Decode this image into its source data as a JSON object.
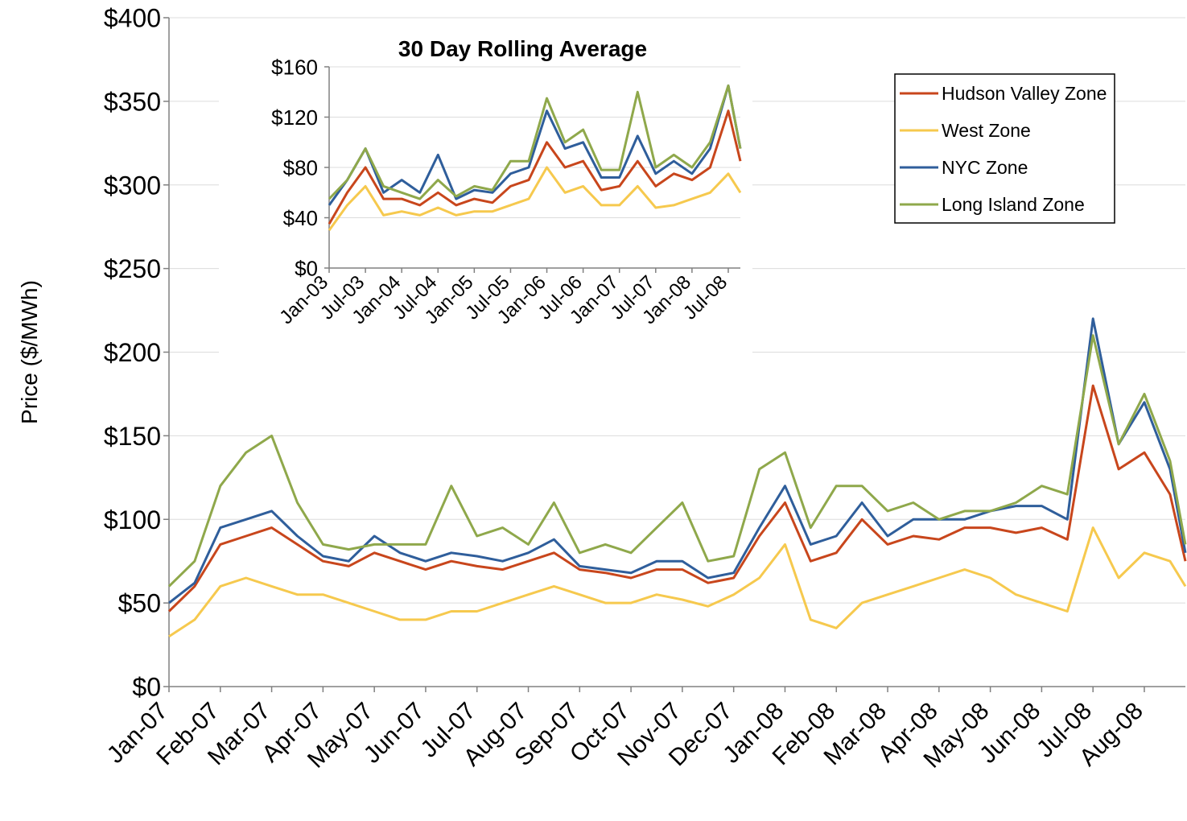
{
  "chart_data": [
    {
      "type": "line",
      "y_label": "Price ($/MWh)",
      "x": [
        0,
        0.5,
        1,
        1.5,
        2,
        2.5,
        3,
        3.5,
        4,
        4.5,
        5,
        5.5,
        6,
        6.5,
        7,
        7.5,
        8,
        8.5,
        9,
        9.5,
        10,
        10.5,
        11,
        11.5,
        12,
        12.5,
        13,
        13.5,
        14,
        14.5,
        15,
        15.5,
        16,
        16.5,
        17,
        17.5,
        18,
        18.5,
        19,
        19.5,
        19.8
      ],
      "series": [
        {
          "name": "Hudson Valley Zone",
          "color": "#c8461c",
          "values": [
            45,
            60,
            85,
            90,
            95,
            85,
            75,
            72,
            80,
            75,
            70,
            75,
            72,
            70,
            75,
            80,
            70,
            68,
            65,
            70,
            70,
            62,
            65,
            90,
            110,
            75,
            80,
            100,
            85,
            90,
            88,
            95,
            95,
            92,
            95,
            88,
            180,
            130,
            140,
            115,
            75
          ]
        },
        {
          "name": "West Zone",
          "color": "#f6c94e",
          "values": [
            30,
            40,
            60,
            65,
            60,
            55,
            55,
            50,
            45,
            40,
            40,
            45,
            45,
            50,
            55,
            60,
            55,
            50,
            50,
            55,
            52,
            48,
            55,
            65,
            85,
            40,
            35,
            50,
            55,
            60,
            65,
            70,
            65,
            55,
            50,
            45,
            95,
            65,
            80,
            75,
            60
          ]
        },
        {
          "name": "NYC Zone",
          "color": "#2f5e9b",
          "values": [
            50,
            62,
            95,
            100,
            105,
            90,
            78,
            75,
            90,
            80,
            75,
            80,
            78,
            75,
            80,
            88,
            72,
            70,
            68,
            75,
            75,
            65,
            68,
            95,
            120,
            85,
            90,
            110,
            90,
            100,
            100,
            100,
            105,
            108,
            108,
            100,
            220,
            145,
            170,
            130,
            80
          ]
        },
        {
          "name": "Long Island Zone",
          "color": "#8fa84b",
          "values": [
            60,
            75,
            120,
            140,
            150,
            110,
            85,
            82,
            85,
            85,
            85,
            120,
            90,
            95,
            85,
            110,
            80,
            85,
            80,
            95,
            110,
            75,
            78,
            130,
            140,
            95,
            120,
            120,
            105,
            110,
            100,
            105,
            105,
            110,
            120,
            115,
            210,
            145,
            175,
            135,
            85
          ]
        }
      ],
      "xlim": [
        0,
        19.8
      ],
      "ylim": [
        0,
        400
      ],
      "xticks": [
        {
          "value": 0,
          "label": "Jan-07"
        },
        {
          "value": 1,
          "label": "Feb-07"
        },
        {
          "value": 2,
          "label": "Mar-07"
        },
        {
          "value": 3,
          "label": "Apr-07"
        },
        {
          "value": 4,
          "label": "May-07"
        },
        {
          "value": 5,
          "label": "Jun-07"
        },
        {
          "value": 6,
          "label": "Jul-07"
        },
        {
          "value": 7,
          "label": "Aug-07"
        },
        {
          "value": 8,
          "label": "Sep-07"
        },
        {
          "value": 9,
          "label": "Oct-07"
        },
        {
          "value": 10,
          "label": "Nov-07"
        },
        {
          "value": 11,
          "label": "Dec-07"
        },
        {
          "value": 12,
          "label": "Jan-08"
        },
        {
          "value": 13,
          "label": "Feb-08"
        },
        {
          "value": 14,
          "label": "Mar-08"
        },
        {
          "value": 15,
          "label": "Apr-08"
        },
        {
          "value": 16,
          "label": "May-08"
        },
        {
          "value": 17,
          "label": "Jun-08"
        },
        {
          "value": 18,
          "label": "Jul-08"
        },
        {
          "value": 19,
          "label": "Aug-08"
        }
      ],
      "yticks": [
        {
          "value": 0,
          "label": "$0"
        },
        {
          "value": 50,
          "label": "$50"
        },
        {
          "value": 100,
          "label": "$100"
        },
        {
          "value": 150,
          "label": "$150"
        },
        {
          "value": 200,
          "label": "$200"
        },
        {
          "value": 250,
          "label": "$250"
        },
        {
          "value": 300,
          "label": "$300"
        },
        {
          "value": 350,
          "label": "$350"
        },
        {
          "value": 400,
          "label": "$400"
        }
      ],
      "grid": true,
      "legend": "upper right"
    },
    {
      "type": "line",
      "title": "30 Day Rolling Average",
      "x": [
        0,
        3,
        6,
        9,
        12,
        15,
        18,
        21,
        24,
        27,
        30,
        33,
        36,
        39,
        42,
        45,
        48,
        51,
        54,
        57,
        60,
        63,
        66,
        68
      ],
      "series": [
        {
          "name": "Hudson Valley Zone",
          "color": "#c8461c",
          "values": [
            35,
            60,
            80,
            55,
            55,
            50,
            60,
            50,
            55,
            52,
            65,
            70,
            100,
            80,
            85,
            62,
            65,
            85,
            65,
            75,
            70,
            80,
            125,
            85
          ]
        },
        {
          "name": "West Zone",
          "color": "#f6c94e",
          "values": [
            30,
            50,
            65,
            42,
            45,
            42,
            48,
            42,
            45,
            45,
            50,
            55,
            80,
            60,
            65,
            50,
            50,
            65,
            48,
            50,
            55,
            60,
            75,
            60
          ]
        },
        {
          "name": "NYC Zone",
          "color": "#2f5e9b",
          "values": [
            50,
            70,
            95,
            60,
            70,
            60,
            90,
            55,
            62,
            60,
            75,
            80,
            125,
            95,
            100,
            72,
            72,
            105,
            75,
            85,
            75,
            95,
            145,
            95
          ]
        },
        {
          "name": "Long Island Zone",
          "color": "#8fa84b",
          "values": [
            55,
            70,
            95,
            65,
            60,
            55,
            70,
            57,
            65,
            62,
            85,
            85,
            135,
            100,
            110,
            78,
            78,
            140,
            80,
            90,
            80,
            100,
            145,
            95
          ]
        }
      ],
      "xlim": [
        0,
        68
      ],
      "ylim": [
        0,
        160
      ],
      "xticks": [
        {
          "value": 0,
          "label": "Jan-03"
        },
        {
          "value": 6,
          "label": "Jul-03"
        },
        {
          "value": 12,
          "label": "Jan-04"
        },
        {
          "value": 18,
          "label": "Jul-04"
        },
        {
          "value": 24,
          "label": "Jan-05"
        },
        {
          "value": 30,
          "label": "Jul-05"
        },
        {
          "value": 36,
          "label": "Jan-06"
        },
        {
          "value": 42,
          "label": "Jul-06"
        },
        {
          "value": 48,
          "label": "Jan-07"
        },
        {
          "value": 54,
          "label": "Jul-07"
        },
        {
          "value": 60,
          "label": "Jan-08"
        },
        {
          "value": 66,
          "label": "Jul-08"
        }
      ],
      "yticks": [
        {
          "value": 0,
          "label": "$0"
        },
        {
          "value": 40,
          "label": "$40"
        },
        {
          "value": 80,
          "label": "$80"
        },
        {
          "value": 120,
          "label": "$120"
        },
        {
          "value": 160,
          "label": "$160"
        }
      ],
      "grid": true
    }
  ]
}
